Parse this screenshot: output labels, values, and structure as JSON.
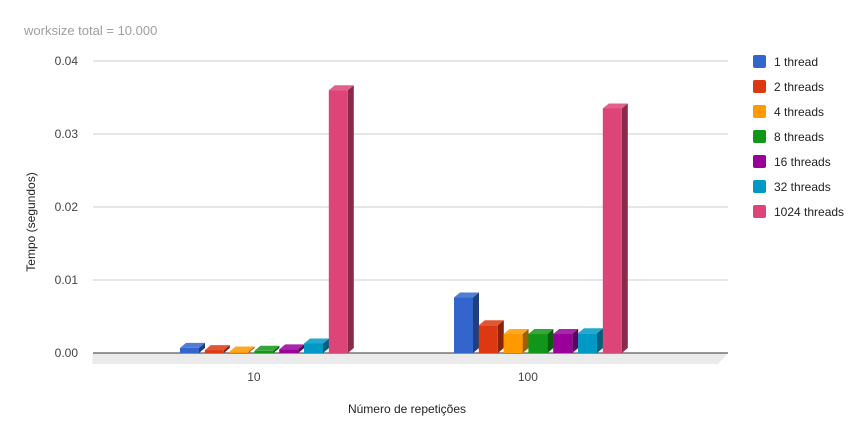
{
  "chart_data": {
    "type": "bar",
    "title": "worksize total = 10.000",
    "xlabel": "Número de repetições",
    "ylabel": "Tempo (segundos)",
    "categories": [
      "10",
      "100"
    ],
    "ylim": [
      0,
      0.04
    ],
    "yticks": [
      "0.00",
      "0.01",
      "0.02",
      "0.03",
      "0.04"
    ],
    "grid": true,
    "legend_position": "right",
    "series": [
      {
        "name": "1 thread",
        "color": "#3366cc",
        "values": [
          0.0007,
          0.0076
        ]
      },
      {
        "name": "2 threads",
        "color": "#dc3912",
        "values": [
          0.0004,
          0.0038
        ]
      },
      {
        "name": "4 threads",
        "color": "#ff9900",
        "values": [
          0.0002,
          0.0026
        ]
      },
      {
        "name": "8 threads",
        "color": "#109618",
        "values": [
          0.0003,
          0.0026
        ]
      },
      {
        "name": "16 threads",
        "color": "#990099",
        "values": [
          0.0005,
          0.0026
        ]
      },
      {
        "name": "32 threads",
        "color": "#0099c6",
        "values": [
          0.0013,
          0.0027
        ]
      },
      {
        "name": "1024 threads",
        "color": "#dd4477",
        "values": [
          0.036,
          0.0335
        ]
      }
    ]
  }
}
